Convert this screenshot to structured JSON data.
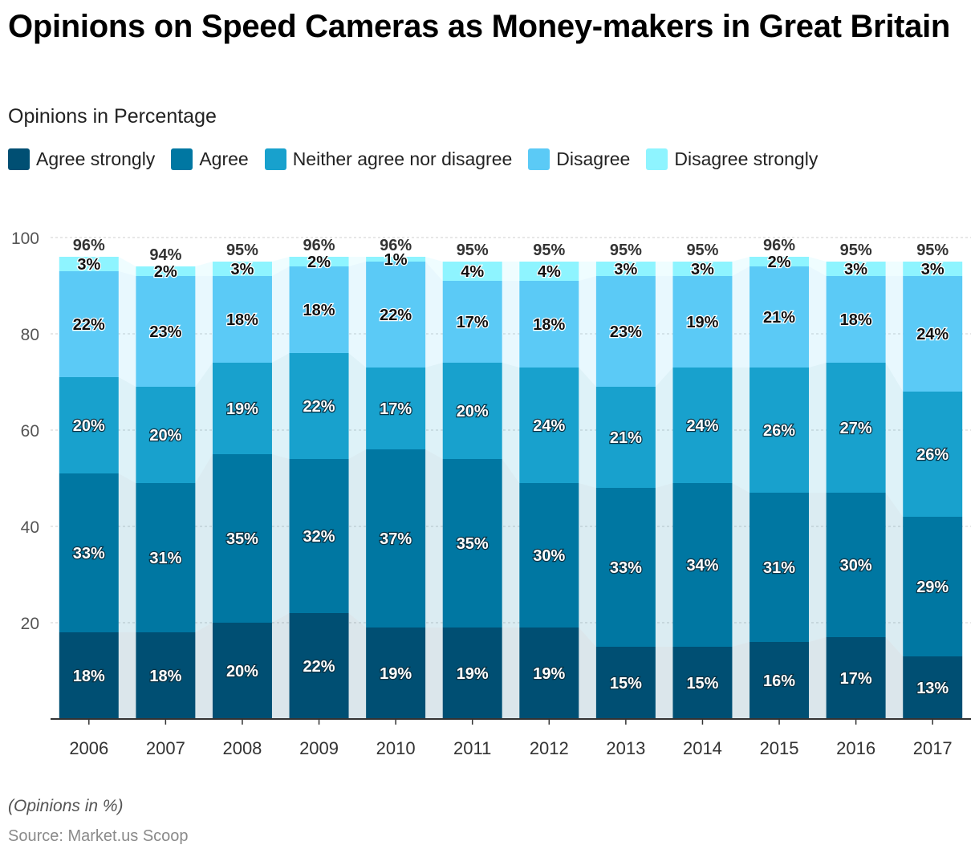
{
  "title": "Opinions on Speed Cameras as Money-makers in Great Britain",
  "subtitle": "Opinions in Percentage",
  "footnote": "(Opinions in %)",
  "source": "Source: Market.us Scoop",
  "chart_data": {
    "type": "bar",
    "stacked": true,
    "categories": [
      "2006",
      "2007",
      "2008",
      "2009",
      "2010",
      "2011",
      "2012",
      "2013",
      "2014",
      "2015",
      "2016",
      "2017"
    ],
    "series": [
      {
        "name": "Agree strongly",
        "color": "#004f73",
        "values": [
          18,
          18,
          20,
          22,
          19,
          19,
          19,
          15,
          15,
          16,
          17,
          13
        ]
      },
      {
        "name": "Agree",
        "color": "#0077a2",
        "values": [
          33,
          31,
          35,
          32,
          37,
          35,
          30,
          33,
          34,
          31,
          30,
          29
        ]
      },
      {
        "name": "Neither agree nor disagree",
        "color": "#18a1cd",
        "values": [
          20,
          20,
          19,
          22,
          17,
          20,
          24,
          21,
          24,
          26,
          27,
          26
        ]
      },
      {
        "name": "Disagree",
        "color": "#5bcaf6",
        "values": [
          22,
          23,
          18,
          18,
          22,
          17,
          18,
          23,
          19,
          21,
          18,
          24
        ]
      },
      {
        "name": "Disagree strongly",
        "color": "#8ef4ff",
        "values": [
          3,
          2,
          3,
          2,
          1,
          4,
          4,
          3,
          3,
          2,
          3,
          3
        ]
      }
    ],
    "totals": [
      96,
      94,
      95,
      96,
      96,
      95,
      95,
      95,
      95,
      96,
      95,
      95
    ],
    "yticks": [
      20,
      40,
      60,
      80,
      100
    ],
    "ylim": [
      0,
      100
    ],
    "grid": true,
    "legend_position": "top-left"
  }
}
